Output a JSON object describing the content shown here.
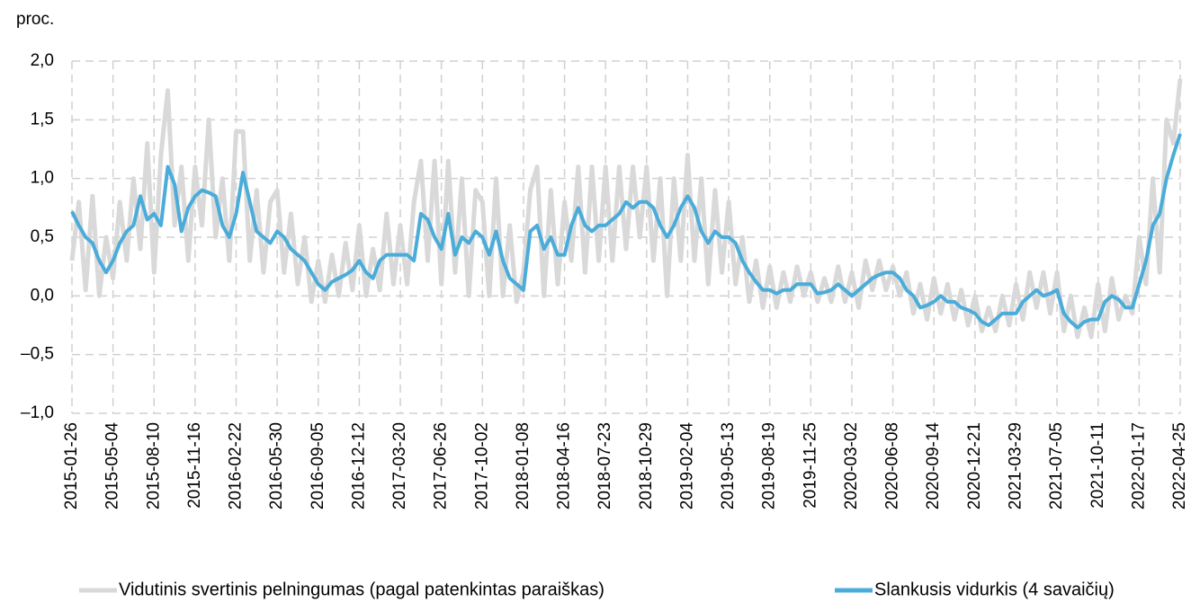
{
  "chart_data": {
    "type": "line",
    "y_label": "proc.",
    "categories": [
      "2015-01-26",
      null,
      null,
      null,
      null,
      null,
      "2015-05-04",
      null,
      null,
      null,
      null,
      null,
      "2015-08-10",
      null,
      null,
      null,
      null,
      null,
      "2015-11-16",
      null,
      null,
      null,
      null,
      null,
      "2016-02-22",
      null,
      null,
      null,
      null,
      null,
      "2016-05-30",
      null,
      null,
      null,
      null,
      null,
      "2016-09-05",
      null,
      null,
      null,
      null,
      null,
      "2016-12-12",
      null,
      null,
      null,
      null,
      null,
      "2017-03-20",
      null,
      null,
      null,
      null,
      null,
      "2017-06-26",
      null,
      null,
      null,
      null,
      null,
      "2017-10-02",
      null,
      null,
      null,
      null,
      null,
      "2018-01-08",
      null,
      null,
      null,
      null,
      null,
      "2018-04-16",
      null,
      null,
      null,
      null,
      null,
      "2018-07-23",
      null,
      null,
      null,
      null,
      null,
      "2018-10-29",
      null,
      null,
      null,
      null,
      null,
      "2019-02-04",
      null,
      null,
      null,
      null,
      null,
      "2019-05-13",
      null,
      null,
      null,
      null,
      null,
      "2019-08-19",
      null,
      null,
      null,
      null,
      null,
      "2019-11-25",
      null,
      null,
      null,
      null,
      null,
      "2020-03-02",
      null,
      null,
      null,
      null,
      null,
      "2020-06-08",
      null,
      null,
      null,
      null,
      null,
      "2020-09-14",
      null,
      null,
      null,
      null,
      null,
      "2020-12-21",
      null,
      null,
      null,
      null,
      null,
      "2021-03-29",
      null,
      null,
      null,
      null,
      null,
      "2021-07-05",
      null,
      null,
      null,
      null,
      null,
      "2021-10-11",
      null,
      null,
      null,
      null,
      null,
      "2022-01-17",
      null,
      null,
      null,
      null,
      null,
      "2022-04-25"
    ],
    "series": [
      {
        "name": "Vidutinis svertinis pelningumas (pagal patenkintas paraiškas)",
        "color": "#d9d9d9",
        "width": 5,
        "values": [
          0.3,
          0.8,
          0.05,
          0.85,
          0.0,
          0.5,
          0.15,
          0.8,
          0.3,
          1.0,
          0.4,
          1.3,
          0.2,
          1.2,
          1.75,
          0.6,
          1.1,
          0.3,
          1.1,
          0.6,
          1.5,
          0.5,
          1.0,
          0.3,
          1.4,
          1.4,
          0.3,
          0.9,
          0.2,
          0.8,
          0.9,
          0.2,
          0.7,
          0.1,
          0.5,
          -0.05,
          0.3,
          -0.05,
          0.35,
          0.0,
          0.45,
          0.05,
          0.6,
          0.0,
          0.4,
          0.05,
          0.7,
          0.1,
          0.6,
          0.1,
          0.8,
          1.15,
          0.3,
          1.15,
          0.1,
          1.15,
          0.2,
          1.0,
          0.0,
          0.9,
          0.8,
          0.0,
          1.0,
          0.0,
          0.6,
          -0.05,
          0.2,
          0.9,
          1.1,
          0.0,
          0.9,
          0.1,
          0.8,
          0.3,
          1.1,
          0.2,
          1.1,
          0.3,
          1.1,
          0.3,
          1.1,
          0.4,
          1.1,
          0.5,
          1.1,
          0.3,
          1.0,
          0.0,
          1.0,
          0.3,
          1.2,
          0.3,
          1.0,
          0.1,
          0.9,
          0.2,
          0.8,
          0.1,
          0.5,
          -0.05,
          0.3,
          -0.1,
          0.25,
          -0.1,
          0.2,
          -0.05,
          0.25,
          0.0,
          0.2,
          -0.05,
          0.15,
          -0.05,
          0.25,
          -0.05,
          0.2,
          -0.1,
          0.3,
          0.05,
          0.3,
          0.05,
          0.25,
          0.0,
          0.2,
          -0.15,
          0.1,
          -0.2,
          0.15,
          -0.15,
          0.1,
          -0.2,
          0.05,
          -0.25,
          0.0,
          -0.3,
          -0.1,
          -0.3,
          0.0,
          -0.25,
          0.1,
          -0.2,
          0.2,
          -0.1,
          0.2,
          -0.15,
          0.2,
          -0.3,
          0.0,
          -0.35,
          -0.1,
          -0.35,
          0.1,
          -0.3,
          0.15,
          -0.2,
          0.0,
          -0.15,
          0.5,
          0.1,
          1.0,
          0.2,
          1.5,
          1.3,
          1.85
        ]
      },
      {
        "name": "Slankusis vidurkis (4 savaičių)",
        "color": "#4bacd9",
        "width": 4,
        "values": [
          0.72,
          0.6,
          0.5,
          0.45,
          0.3,
          0.2,
          0.3,
          0.45,
          0.55,
          0.6,
          0.85,
          0.65,
          0.7,
          0.6,
          1.1,
          0.95,
          0.55,
          0.75,
          0.85,
          0.9,
          0.88,
          0.85,
          0.6,
          0.5,
          0.7,
          1.05,
          0.8,
          0.55,
          0.5,
          0.45,
          0.55,
          0.5,
          0.4,
          0.35,
          0.3,
          0.2,
          0.1,
          0.05,
          0.12,
          0.15,
          0.18,
          0.22,
          0.3,
          0.2,
          0.15,
          0.3,
          0.35,
          0.35,
          0.35,
          0.35,
          0.3,
          0.7,
          0.65,
          0.5,
          0.4,
          0.7,
          0.35,
          0.5,
          0.45,
          0.55,
          0.5,
          0.35,
          0.55,
          0.3,
          0.15,
          0.1,
          0.05,
          0.55,
          0.6,
          0.4,
          0.5,
          0.35,
          0.35,
          0.6,
          0.75,
          0.6,
          0.55,
          0.6,
          0.6,
          0.65,
          0.7,
          0.8,
          0.75,
          0.8,
          0.8,
          0.75,
          0.6,
          0.5,
          0.6,
          0.75,
          0.85,
          0.75,
          0.55,
          0.45,
          0.55,
          0.5,
          0.5,
          0.45,
          0.3,
          0.2,
          0.12,
          0.05,
          0.05,
          0.02,
          0.05,
          0.05,
          0.1,
          0.1,
          0.1,
          0.02,
          0.03,
          0.05,
          0.1,
          0.05,
          0.0,
          0.05,
          0.1,
          0.15,
          0.18,
          0.2,
          0.2,
          0.15,
          0.05,
          0.0,
          -0.1,
          -0.08,
          -0.05,
          0.0,
          -0.05,
          -0.05,
          -0.1,
          -0.12,
          -0.15,
          -0.22,
          -0.25,
          -0.2,
          -0.15,
          -0.15,
          -0.15,
          -0.05,
          0.0,
          0.05,
          0.0,
          0.02,
          0.05,
          -0.15,
          -0.22,
          -0.27,
          -0.22,
          -0.2,
          -0.2,
          -0.05,
          0.0,
          -0.03,
          -0.1,
          -0.1,
          0.1,
          0.3,
          0.6,
          0.7,
          1.0,
          1.2,
          1.38
        ]
      }
    ],
    "ylim": [
      -1,
      2
    ],
    "yticks": [
      {
        "value": -1,
        "label": "–1,0"
      },
      {
        "value": -0.5,
        "label": "–0,5"
      },
      {
        "value": 0,
        "label": "0,0"
      },
      {
        "value": 0.5,
        "label": "0,5"
      },
      {
        "value": 1,
        "label": "1,0"
      },
      {
        "value": 1.5,
        "label": "1,5"
      },
      {
        "value": 2,
        "label": "2,0"
      }
    ],
    "grid": true
  }
}
